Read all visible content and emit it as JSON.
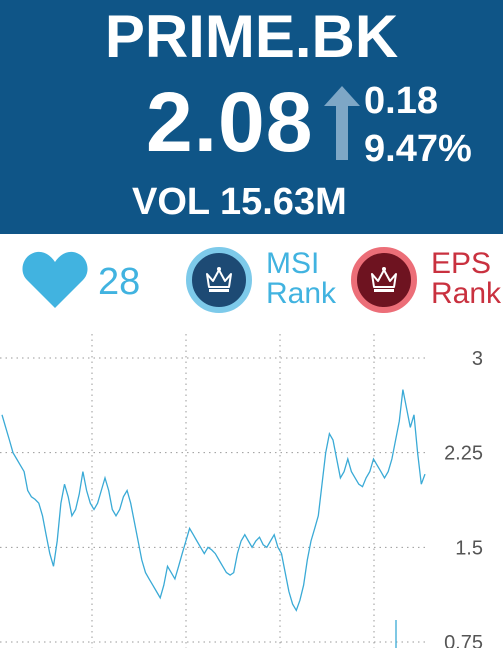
{
  "header": {
    "ticker": "PRIME.BK",
    "price": "2.08",
    "change_abs": "0.18",
    "change_pct": "9.47%",
    "volume": "VOL 15.63M",
    "direction_icon": "up-arrow-icon",
    "background_color": "#0f5587"
  },
  "stats": {
    "likes_icon": "heart-icon",
    "likes_count": "28",
    "msi": {
      "icon": "crown-icon",
      "label_line1": "MSI",
      "label_line2": "Rank"
    },
    "eps": {
      "icon": "crown-icon",
      "label_line1": "EPS",
      "label_line2": "Rank"
    }
  },
  "chart_data": {
    "type": "line",
    "ylim": [
      0.75,
      3.0
    ],
    "yticks": [
      "3",
      "2.25",
      "1.5",
      "0.75"
    ],
    "series_color": "#3aaad6",
    "grid": true,
    "values": [
      2.55,
      2.45,
      2.35,
      2.25,
      2.2,
      2.15,
      2.1,
      1.95,
      1.9,
      1.88,
      1.85,
      1.75,
      1.6,
      1.45,
      1.35,
      1.55,
      1.85,
      2.0,
      1.9,
      1.75,
      1.8,
      1.92,
      2.1,
      1.95,
      1.85,
      1.8,
      1.85,
      1.95,
      2.05,
      1.95,
      1.8,
      1.75,
      1.8,
      1.9,
      1.95,
      1.85,
      1.7,
      1.55,
      1.4,
      1.3,
      1.25,
      1.2,
      1.15,
      1.1,
      1.2,
      1.35,
      1.3,
      1.25,
      1.35,
      1.45,
      1.55,
      1.65,
      1.6,
      1.55,
      1.5,
      1.45,
      1.5,
      1.48,
      1.45,
      1.4,
      1.35,
      1.3,
      1.28,
      1.3,
      1.45,
      1.55,
      1.6,
      1.55,
      1.5,
      1.55,
      1.58,
      1.52,
      1.5,
      1.55,
      1.6,
      1.5,
      1.45,
      1.3,
      1.15,
      1.05,
      1.0,
      1.08,
      1.2,
      1.4,
      1.55,
      1.65,
      1.75,
      2.0,
      2.25,
      2.4,
      2.35,
      2.2,
      2.05,
      2.1,
      2.2,
      2.1,
      2.05,
      2.0,
      1.98,
      2.05,
      2.1,
      2.2,
      2.15,
      2.1,
      2.05,
      2.1,
      2.2,
      2.35,
      2.5,
      2.75,
      2.6,
      2.45,
      2.55,
      2.25,
      2.0,
      2.08
    ]
  }
}
